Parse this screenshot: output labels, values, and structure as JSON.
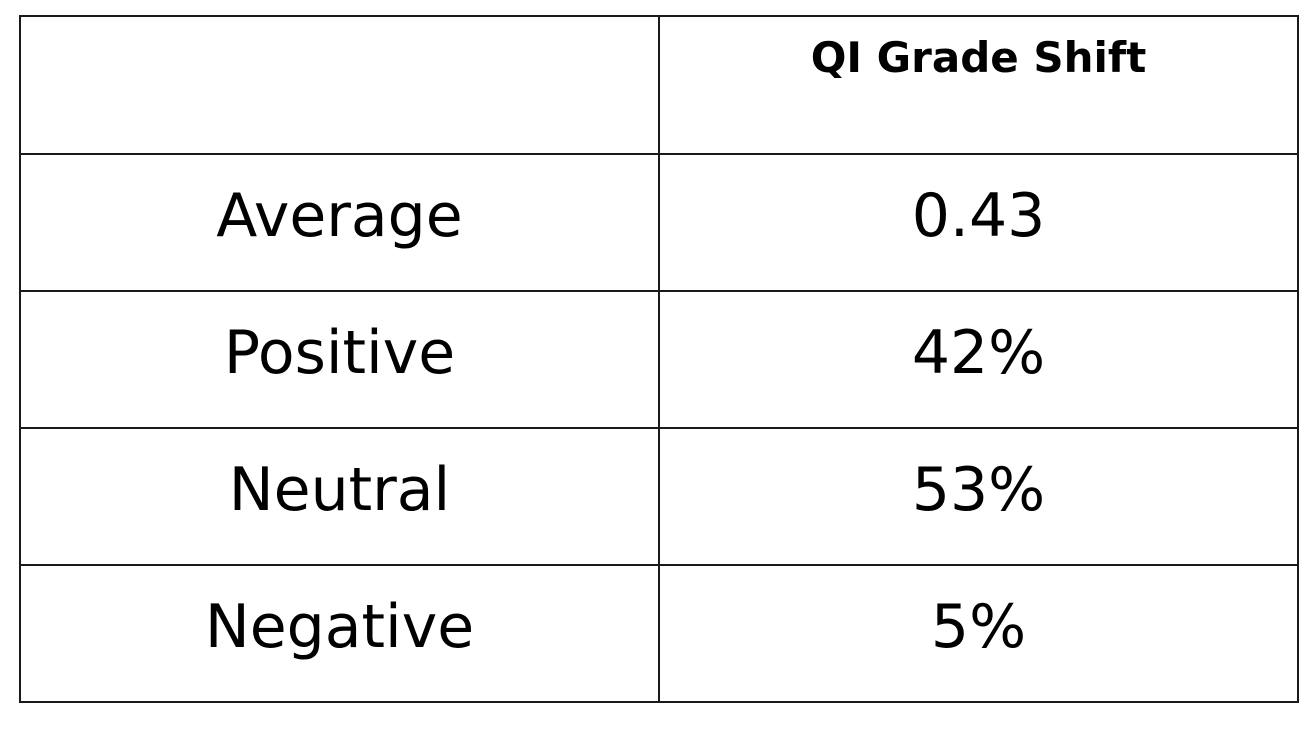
{
  "table": {
    "header": {
      "corner": "",
      "column_title": "QI Grade Shift"
    },
    "rows": [
      {
        "label": "Average",
        "value": "0.43"
      },
      {
        "label": "Positive",
        "value": "42%"
      },
      {
        "label": "Neutral",
        "value": "53%"
      },
      {
        "label": "Negative",
        "value": "5%"
      }
    ]
  }
}
